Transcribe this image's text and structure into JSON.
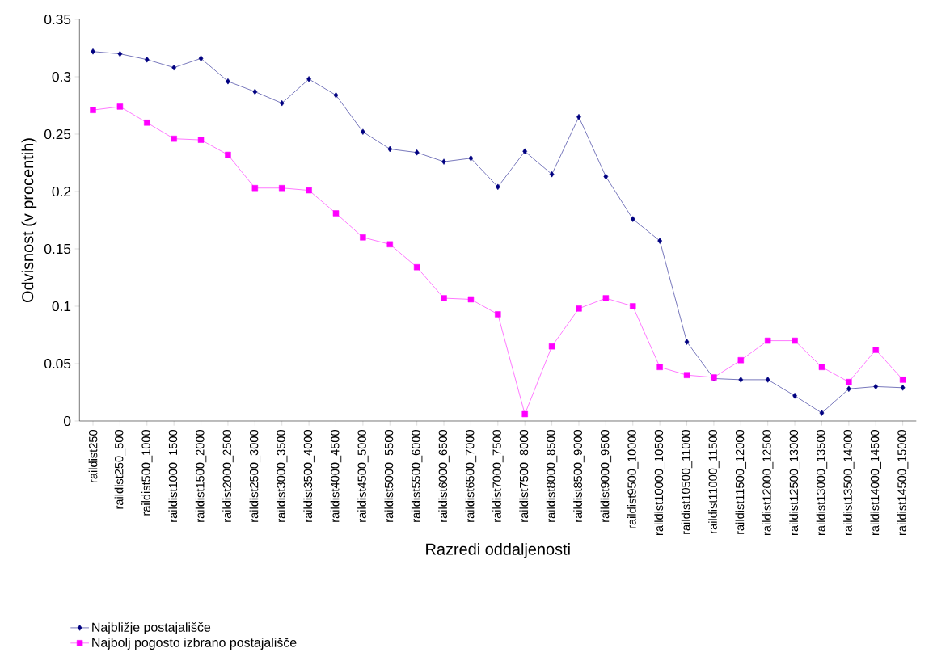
{
  "chart_data": {
    "type": "line",
    "xlabel": "Razredi oddaljenosti",
    "ylabel": "Odvisnost (v procentih)",
    "categories": [
      "raildist250",
      "raildist250_500",
      "raildist500_1000",
      "raildist1000_1500",
      "raildist1500_2000",
      "raildist2000_2500",
      "raildist2500_3000",
      "raildist3000_3500",
      "raildist3500_4000",
      "raildist4000_4500",
      "raildist4500_5000",
      "raildist5000_5500",
      "raildist5500_6000",
      "raildist6000_6500",
      "raildist6500_7000",
      "raildist7000_7500",
      "raildist7500_8000",
      "raildist8000_8500",
      "raildist8500_9000",
      "raildist9000_9500",
      "raildist9500_10000",
      "raildist10000_10500",
      "raildist10500_11000",
      "raildist11000_11500",
      "raildist11500_12000",
      "raildist12000_12500",
      "raildist12500_13000",
      "raildist13000_13500",
      "raildist13500_14000",
      "raildist14000_14500",
      "raildist14500_15000"
    ],
    "series": [
      {
        "name": "Najbližje postajališče",
        "color": "#000080",
        "marker": "diamond",
        "values": [
          0.322,
          0.32,
          0.315,
          0.308,
          0.316,
          0.296,
          0.287,
          0.277,
          0.298,
          0.284,
          0.252,
          0.237,
          0.234,
          0.226,
          0.229,
          0.204,
          0.235,
          0.215,
          0.265,
          0.213,
          0.176,
          0.157,
          0.069,
          0.037,
          0.036,
          0.036,
          0.022,
          0.007,
          0.028,
          0.03,
          0.029
        ]
      },
      {
        "name": "Najbolj pogosto izbrano postajališče",
        "color": "#ff00ff",
        "marker": "square",
        "values": [
          0.271,
          0.274,
          0.26,
          0.246,
          0.245,
          0.232,
          0.203,
          0.203,
          0.201,
          0.181,
          0.16,
          0.154,
          0.134,
          0.107,
          0.106,
          0.093,
          0.006,
          0.065,
          0.098,
          0.107,
          0.1,
          0.047,
          0.04,
          0.038,
          0.053,
          0.07,
          0.07,
          0.047,
          0.034,
          0.062,
          0.036
        ]
      }
    ],
    "ylim": [
      0,
      0.35
    ],
    "yticks": [
      0,
      0.05,
      0.1,
      0.15,
      0.2,
      0.25,
      0.3,
      0.35
    ],
    "grid": false,
    "legend": "bottom left",
    "line_style": "solid"
  }
}
